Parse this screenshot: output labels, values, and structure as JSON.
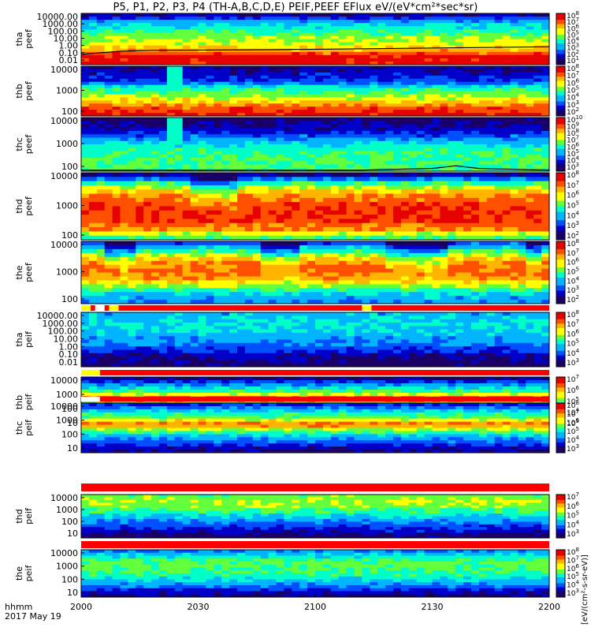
{
  "title": "P5, P1, P2, P3, P4 (TH-A,B,C,D,E) PEIF,PEEF EFlux eV/(eV*cm²*sec*sr)",
  "footer": {
    "line1": "hhmm",
    "line2": "2017 May 19"
  },
  "colorbar_units": "[eV/(cm²-s-sr-eV)]",
  "colors": {
    "flag_red": "#ff0000",
    "flag_yellow": "#ffff00",
    "flag_white": "#ffffff",
    "curve": "#000000",
    "colormap": [
      "#1a0066",
      "#0000c8",
      "#0050ff",
      "#00b4ff",
      "#00ffc8",
      "#64ff3c",
      "#ffff00",
      "#ffb400",
      "#ff5000",
      "#e60000"
    ]
  },
  "chart_data": {
    "type": "heatmap",
    "x_axis": {
      "ticks": [
        "2000",
        "2030",
        "2100",
        "2130",
        "2200"
      ],
      "range": [
        "20:00",
        "22:00"
      ],
      "label": "hhmm"
    },
    "panels": [
      {
        "id": "tha_peef",
        "ylabel": [
          "tha",
          "peef"
        ],
        "yticks": [
          "10000.00",
          "1000.00",
          "100.00",
          "10.00",
          "1.00",
          "0.10",
          "0.01"
        ],
        "cb_exp": [
          1,
          2,
          3,
          4,
          5,
          6,
          7,
          8
        ],
        "bands": [
          0.1,
          0.35,
          0.45,
          0.55,
          0.62,
          0.72,
          0.95,
          0.95
        ],
        "curve": [
          [
            0,
            0.8
          ],
          [
            0.08,
            0.74
          ],
          [
            0.15,
            0.72
          ],
          [
            0.4,
            0.71
          ],
          [
            0.7,
            0.68
          ],
          [
            1,
            0.65
          ]
        ]
      },
      {
        "id": "thb_peef",
        "ylabel": [
          "thb",
          "peef"
        ],
        "yticks": [
          "10000",
          "1000",
          "100"
        ],
        "cb_exp": [
          2,
          3,
          4,
          5,
          6,
          7,
          8
        ],
        "bands": [
          0.1,
          0.15,
          0.2,
          0.45,
          0.55,
          0.7,
          0.85,
          0.95
        ],
        "spike": 0.19
      },
      {
        "id": "thc_peef",
        "ylabel": [
          "thc",
          "peef"
        ],
        "yticks": [
          "10000",
          "1000",
          "100"
        ],
        "cb_exp": [
          3,
          4,
          5,
          6,
          7,
          8,
          9,
          10
        ],
        "bands": [
          0.05,
          0.1,
          0.2,
          0.35,
          0.45,
          0.5,
          0.5,
          0.5
        ],
        "spike": 0.19,
        "curve": [
          [
            0,
            0.98
          ],
          [
            0.6,
            0.98
          ],
          [
            0.75,
            0.95
          ],
          [
            0.8,
            0.9
          ],
          [
            0.85,
            0.95
          ],
          [
            1,
            0.98
          ]
        ]
      },
      {
        "id": "thd_peef",
        "ylabel": [
          "thd",
          "peef"
        ],
        "yticks": [
          "10000",
          "1000",
          "100"
        ],
        "cb_exp": [
          2,
          3,
          4,
          5,
          6,
          7,
          8
        ],
        "bands": [
          0.1,
          0.5,
          0.75,
          0.85,
          0.9,
          0.9,
          0.8,
          0.5
        ],
        "dips": [
          [
            0.23,
            0.33
          ]
        ]
      },
      {
        "id": "the_peef",
        "ylabel": [
          "the",
          "peef"
        ],
        "yticks": [
          "10000",
          "1000",
          "100"
        ],
        "cb_exp": [
          2,
          3,
          4,
          5,
          6,
          7,
          8
        ],
        "bands": [
          0.25,
          0.5,
          0.75,
          0.85,
          0.8,
          0.6,
          0.4,
          0.3
        ],
        "dips": [
          [
            0.05,
            0.11
          ],
          [
            0.37,
            0.45
          ],
          [
            0.65,
            0.77
          ],
          [
            0.95,
            0.98
          ]
        ]
      },
      {
        "id": "tha_peif",
        "ylabel": [
          "tha",
          "peif"
        ],
        "yticks": [
          "10000.00",
          "1000.00",
          "100.00",
          "10.00",
          "1.00",
          "0.10",
          "0.01"
        ],
        "cb_exp": [
          3,
          4,
          5,
          6,
          7,
          8
        ],
        "bands": [
          0.35,
          0.4,
          0.4,
          0.35,
          0.3,
          0.2,
          0.1,
          0.05
        ]
      },
      {
        "id": "thb_peif",
        "ylabel": [
          "thb",
          "peif"
        ],
        "yticks": [
          "10000",
          "1000",
          "100",
          "10"
        ],
        "cb_exp": [
          3,
          4,
          5,
          6,
          7
        ],
        "bands": [
          0.1,
          0.35,
          0.5,
          0.9,
          0.45,
          0.3,
          0.15,
          0.05
        ]
      },
      {
        "id": "thc_peif",
        "ylabel": [
          "thc",
          "peif"
        ],
        "yticks": [
          "10000",
          "1000",
          "100",
          "10"
        ],
        "cb_exp": [
          3,
          4,
          5,
          6,
          7,
          8
        ],
        "bands": [
          0.2,
          0.4,
          0.55,
          0.85,
          0.5,
          0.35,
          0.2,
          0.08
        ]
      },
      {
        "id": "thd_peif",
        "ylabel": [
          "thd",
          "peif"
        ],
        "yticks": [
          "10000",
          "1000",
          "100",
          "10"
        ],
        "cb_exp": [
          3,
          4,
          5,
          6,
          7
        ],
        "bands": [
          0.55,
          0.6,
          0.55,
          0.45,
          0.35,
          0.25,
          0.15,
          0.05
        ]
      },
      {
        "id": "the_peif",
        "ylabel": [
          "the",
          "peif"
        ],
        "yticks": [
          "10000",
          "1000",
          "100",
          "10"
        ],
        "cb_exp": [
          3,
          4,
          5,
          6,
          7,
          8
        ],
        "bands": [
          0.3,
          0.45,
          0.55,
          0.5,
          0.45,
          0.35,
          0.2,
          0.08
        ]
      }
    ]
  }
}
